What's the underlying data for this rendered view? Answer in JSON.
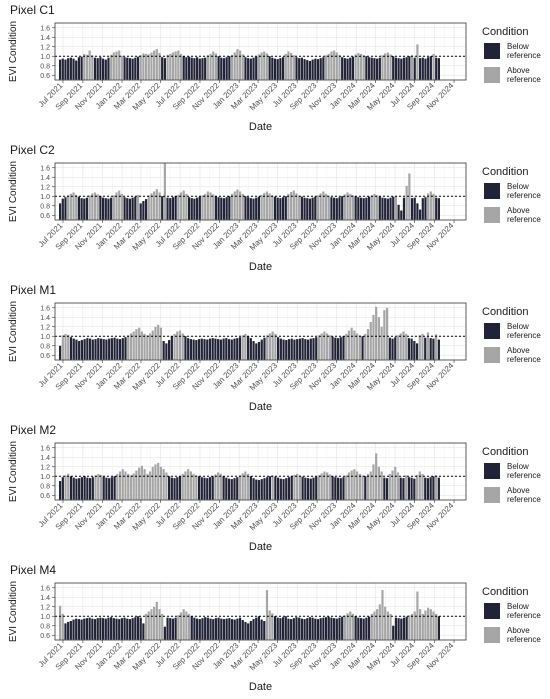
{
  "chart_data": [
    {
      "type": "bar",
      "title": "Pixel C1",
      "xlabel": "Date",
      "ylabel": "EVI Condition",
      "ylim": [
        0.5,
        1.7
      ],
      "yticks": [
        "0.6",
        "0.8",
        "1.0",
        "1.2",
        "1.4",
        "1.6"
      ],
      "reference_line": 1.0,
      "grid": true,
      "x_start": "2021-07-01",
      "x_ticks": [
        "Jul 2021",
        "Sep 2021",
        "Nov 2021",
        "Jan 2022",
        "Mar 2022",
        "May 2022",
        "Jul 2022",
        "Sep 2022",
        "Nov 2022",
        "Jan 2023",
        "Mar 2023",
        "May 2023",
        "Jul 2023",
        "Sep 2023",
        "Nov 2023",
        "Jan 2024",
        "Mar 2024",
        "May 2024",
        "Jul 2024",
        "Sep 2024",
        "Nov 2024"
      ],
      "series": [
        {
          "name": "Below reference",
          "color": "#232338"
        },
        {
          "name": "Above reference",
          "color": "#a6a6a6"
        }
      ],
      "legend": {
        "title": "Condition",
        "position": "right"
      },
      "values": [
        0.93,
        0.95,
        0.93,
        0.96,
        0.97,
        0.95,
        0.91,
        0.98,
        0.99,
        1.05,
        1.03,
        1.12,
        1.02,
        0.97,
        0.96,
        0.98,
        0.95,
        0.93,
        0.97,
        1.03,
        1.08,
        1.1,
        1.12,
        1.01,
        0.98,
        0.97,
        0.96,
        0.95,
        0.97,
        0.99,
        1.02,
        1.06,
        1.05,
        1.04,
        1.08,
        1.12,
        1.15,
        1.07,
        0.98,
        0.96,
        1.03,
        1.05,
        1.08,
        1.1,
        1.12,
        1.05,
        1.0,
        0.98,
        0.99,
        0.97,
        0.96,
        0.98,
        0.95,
        0.96,
        0.97,
        1.02,
        1.05,
        1.1,
        1.06,
        1.0,
        0.97,
        0.96,
        0.98,
        1.0,
        1.03,
        1.08,
        1.15,
        1.12,
        1.04,
        0.98,
        0.96,
        0.95,
        0.97,
        0.99,
        1.04,
        1.08,
        1.1,
        1.06,
        1.0,
        0.97,
        0.95,
        0.94,
        0.96,
        0.98,
        1.05,
        1.1,
        1.07,
        1.02,
        0.98,
        0.96,
        0.97,
        0.94,
        0.92,
        0.9,
        0.93,
        0.95,
        0.94,
        0.96,
        0.98,
        1.02,
        1.05,
        1.1,
        1.12,
        1.08,
        1.03,
        0.98,
        0.96,
        0.95,
        0.97,
        0.99,
        1.04,
        1.07,
        1.05,
        1.02,
        1.0,
        0.98,
        0.97,
        0.96,
        0.95,
        0.97,
        1.02,
        1.06,
        1.08,
        1.04,
        1.0,
        0.97,
        0.96,
        0.95,
        0.97,
        0.98,
        1.0,
        1.02,
        0.97,
        1.25,
        0.96,
        0.97,
        0.95,
        0.98,
        1.0,
        1.05,
        0.97,
        0.96
      ]
    },
    {
      "type": "bar",
      "title": "Pixel C2",
      "xlabel": "Date",
      "ylabel": "EVI Condition",
      "ylim": [
        0.5,
        1.7
      ],
      "yticks": [
        "0.6",
        "0.8",
        "1.0",
        "1.2",
        "1.4",
        "1.6"
      ],
      "reference_line": 1.0,
      "grid": true,
      "x_start": "2021-07-01",
      "x_ticks": [
        "Jul 2021",
        "Sep 2021",
        "Nov 2021",
        "Jan 2022",
        "Mar 2022",
        "May 2022",
        "Jul 2022",
        "Sep 2022",
        "Nov 2022",
        "Jan 2023",
        "Mar 2023",
        "May 2023",
        "Jul 2023",
        "Sep 2023",
        "Nov 2023",
        "Jan 2024",
        "Mar 2024",
        "May 2024",
        "Jul 2024",
        "Sep 2024",
        "Nov 2024"
      ],
      "series": [
        {
          "name": "Below reference",
          "color": "#232338"
        },
        {
          "name": "Above reference",
          "color": "#a6a6a6"
        }
      ],
      "legend": {
        "title": "Condition",
        "position": "right"
      },
      "values": [
        0.85,
        0.95,
        0.98,
        1.02,
        1.05,
        1.08,
        1.03,
        0.99,
        0.96,
        0.95,
        0.97,
        1.02,
        1.06,
        1.08,
        1.04,
        1.0,
        0.97,
        0.96,
        0.95,
        0.97,
        1.02,
        1.08,
        1.12,
        1.05,
        0.98,
        0.96,
        0.95,
        0.97,
        0.99,
        1.03,
        0.85,
        0.9,
        0.94,
        1.02,
        1.06,
        1.1,
        1.15,
        1.08,
        1.0,
        1.7,
        0.97,
        0.96,
        0.98,
        1.0,
        1.03,
        1.08,
        1.12,
        1.05,
        0.98,
        0.96,
        0.95,
        0.97,
        0.99,
        1.02,
        1.05,
        1.1,
        1.08,
        1.04,
        1.0,
        0.98,
        0.97,
        0.96,
        0.98,
        1.0,
        1.05,
        1.1,
        1.14,
        1.1,
        1.05,
        1.0,
        0.98,
        0.96,
        0.95,
        0.97,
        0.99,
        1.03,
        1.07,
        1.1,
        1.06,
        1.02,
        0.99,
        0.97,
        0.96,
        0.98,
        1.0,
        1.05,
        1.09,
        1.12,
        1.06,
        1.02,
        0.99,
        0.97,
        0.96,
        0.95,
        0.97,
        0.99,
        1.02,
        1.06,
        1.1,
        1.05,
        1.01,
        0.98,
        0.97,
        0.96,
        0.98,
        1.0,
        1.04,
        1.08,
        1.05,
        1.02,
        1.0,
        0.98,
        0.97,
        0.96,
        0.97,
        0.99,
        1.02,
        1.05,
        1.02,
        0.99,
        0.97,
        0.96,
        0.95,
        0.97,
        0.99,
        1.01,
        0.82,
        0.7,
        0.97,
        1.22,
        1.48,
        0.96,
        0.97,
        0.85,
        0.72,
        0.96,
        0.98,
        1.06,
        1.1,
        1.05,
        0.97,
        0.96
      ]
    },
    {
      "type": "bar",
      "title": "Pixel M1",
      "xlabel": "Date",
      "ylabel": "EVI Condition",
      "ylim": [
        0.5,
        1.7
      ],
      "yticks": [
        "0.6",
        "0.8",
        "1.0",
        "1.2",
        "1.4",
        "1.6"
      ],
      "reference_line": 1.0,
      "grid": true,
      "x_start": "2021-07-01",
      "x_ticks": [
        "Jul 2021",
        "Sep 2021",
        "Nov 2021",
        "Jan 2022",
        "Mar 2022",
        "May 2022",
        "Jul 2022",
        "Sep 2022",
        "Nov 2022",
        "Jan 2023",
        "Mar 2023",
        "May 2023",
        "Jul 2023",
        "Sep 2023",
        "Nov 2023",
        "Jan 2024",
        "Mar 2024",
        "May 2024",
        "Jul 2024",
        "Sep 2024",
        "Nov 2024"
      ],
      "series": [
        {
          "name": "Below reference",
          "color": "#232338"
        },
        {
          "name": "Above reference",
          "color": "#a6a6a6"
        }
      ],
      "legend": {
        "title": "Condition",
        "position": "right"
      },
      "values": [
        0.8,
        1.02,
        1.05,
        1.03,
        0.98,
        0.95,
        0.93,
        0.9,
        0.92,
        0.94,
        0.96,
        0.95,
        0.93,
        0.94,
        0.96,
        0.95,
        0.94,
        0.93,
        0.95,
        0.96,
        0.97,
        0.95,
        0.94,
        0.96,
        0.98,
        1.02,
        1.06,
        1.1,
        1.15,
        1.18,
        1.1,
        1.05,
        1.02,
        1.06,
        1.12,
        1.2,
        1.24,
        1.18,
        0.9,
        0.85,
        0.92,
        1.0,
        1.05,
        1.1,
        1.12,
        1.06,
        1.0,
        0.96,
        0.94,
        0.93,
        0.92,
        0.94,
        0.95,
        0.94,
        0.93,
        0.95,
        0.96,
        0.95,
        0.94,
        0.93,
        0.95,
        0.96,
        0.94,
        0.93,
        0.95,
        0.96,
        0.98,
        1.02,
        1.05,
        1.0,
        0.96,
        0.9,
        0.85,
        0.88,
        0.93,
        0.97,
        1.02,
        1.06,
        1.1,
        1.05,
        0.98,
        0.95,
        0.93,
        0.92,
        0.94,
        0.95,
        0.93,
        0.94,
        0.95,
        0.96,
        0.94,
        0.93,
        0.95,
        0.96,
        0.98,
        1.02,
        1.06,
        1.1,
        1.06,
        1.02,
        0.99,
        0.97,
        0.96,
        0.98,
        1.0,
        1.05,
        1.12,
        1.18,
        1.12,
        1.06,
        1.02,
        1.0,
        1.05,
        1.15,
        1.3,
        1.45,
        1.62,
        1.4,
        1.2,
        1.55,
        1.6,
        0.97,
        0.95,
        0.98,
        1.02,
        1.06,
        1.1,
        1.05,
        0.96,
        0.95,
        0.9,
        0.85,
        1.02,
        1.05,
        0.97,
        1.08,
        0.96,
        0.95,
        1.04,
        0.93
      ]
    },
    {
      "type": "bar",
      "title": "Pixel M2",
      "xlabel": "Date",
      "ylabel": "EVI Condition",
      "ylim": [
        0.5,
        1.7
      ],
      "yticks": [
        "0.6",
        "0.8",
        "1.0",
        "1.2",
        "1.4",
        "1.6"
      ],
      "reference_line": 1.0,
      "grid": true,
      "x_start": "2021-07-01",
      "x_ticks": [
        "Jul 2021",
        "Sep 2021",
        "Nov 2021",
        "Jan 2022",
        "Mar 2022",
        "May 2022",
        "Jul 2022",
        "Sep 2022",
        "Nov 2022",
        "Jan 2023",
        "Mar 2023",
        "May 2023",
        "Jul 2023",
        "Sep 2023",
        "Nov 2023",
        "Jan 2024",
        "Mar 2024",
        "May 2024",
        "Jul 2024",
        "Sep 2024",
        "Nov 2024"
      ],
      "series": [
        {
          "name": "Below reference",
          "color": "#232338"
        },
        {
          "name": "Above reference",
          "color": "#a6a6a6"
        }
      ],
      "legend": {
        "title": "Condition",
        "position": "right"
      },
      "values": [
        0.9,
        0.98,
        1.02,
        1.05,
        1.0,
        0.97,
        0.95,
        0.96,
        0.98,
        1.0,
        0.97,
        0.96,
        0.98,
        1.02,
        1.05,
        1.03,
        0.99,
        0.97,
        0.96,
        0.98,
        1.0,
        1.05,
        1.1,
        1.15,
        1.1,
        1.05,
        1.02,
        1.06,
        1.12,
        1.18,
        1.22,
        1.15,
        1.05,
        1.1,
        1.2,
        1.25,
        1.28,
        1.2,
        1.15,
        1.08,
        1.0,
        0.97,
        0.96,
        0.98,
        1.0,
        1.05,
        1.1,
        1.15,
        1.1,
        1.05,
        1.02,
        1.0,
        0.98,
        0.97,
        0.96,
        0.98,
        1.0,
        1.04,
        1.08,
        1.05,
        1.0,
        0.97,
        0.95,
        0.94,
        0.96,
        0.98,
        1.02,
        1.06,
        1.1,
        1.05,
        1.0,
        0.96,
        0.93,
        0.92,
        0.94,
        0.96,
        0.98,
        1.0,
        1.02,
        0.99,
        0.97,
        0.95,
        0.94,
        0.96,
        0.98,
        1.0,
        1.03,
        1.05,
        1.02,
        0.99,
        0.97,
        0.96,
        0.95,
        0.97,
        0.99,
        1.02,
        1.06,
        1.1,
        1.08,
        1.04,
        1.0,
        0.98,
        0.97,
        0.96,
        0.98,
        1.02,
        1.08,
        1.12,
        1.15,
        1.1,
        1.05,
        1.02,
        1.0,
        1.05,
        1.1,
        1.25,
        1.48,
        1.2,
        1.1,
        0.97,
        0.96,
        1.05,
        1.12,
        1.2,
        1.08,
        0.97,
        0.96,
        1.02,
        0.98,
        0.97,
        0.95,
        1.03,
        1.1,
        1.05,
        0.97,
        0.96,
        0.98,
        1.0,
        1.02,
        0.97
      ]
    },
    {
      "type": "bar",
      "title": "Pixel M4",
      "xlabel": "Date",
      "ylabel": "EVI Condition",
      "ylim": [
        0.5,
        1.7
      ],
      "yticks": [
        "0.6",
        "0.8",
        "1.0",
        "1.2",
        "1.4",
        "1.6"
      ],
      "reference_line": 1.0,
      "grid": true,
      "x_start": "2021-07-01",
      "x_ticks": [
        "Jul 2021",
        "Sep 2021",
        "Nov 2021",
        "Jan 2022",
        "Mar 2022",
        "May 2022",
        "Jul 2022",
        "Sep 2022",
        "Nov 2022",
        "Jan 2023",
        "Mar 2023",
        "May 2023",
        "Jul 2023",
        "Sep 2023",
        "Nov 2023",
        "Jan 2024",
        "Mar 2024",
        "May 2024",
        "Jul 2024",
        "Sep 2024",
        "Nov 2024"
      ],
      "series": [
        {
          "name": "Below reference",
          "color": "#232338"
        },
        {
          "name": "Above reference",
          "color": "#a6a6a6"
        }
      ],
      "legend": {
        "title": "Condition",
        "position": "right"
      },
      "values": [
        1.22,
        1.05,
        0.85,
        0.88,
        0.9,
        0.93,
        0.95,
        0.94,
        0.93,
        0.95,
        0.96,
        0.97,
        0.95,
        0.94,
        0.96,
        0.97,
        0.96,
        0.95,
        0.97,
        0.98,
        0.96,
        0.95,
        0.94,
        0.96,
        0.97,
        0.95,
        0.94,
        0.96,
        0.98,
        1.0,
        0.97,
        0.85,
        1.05,
        1.1,
        1.15,
        1.2,
        1.3,
        1.15,
        1.05,
        0.78,
        0.97,
        0.96,
        0.95,
        0.97,
        1.02,
        1.08,
        1.15,
        1.1,
        1.05,
        1.0,
        0.97,
        0.95,
        0.94,
        0.96,
        0.98,
        0.97,
        0.95,
        0.94,
        0.96,
        0.97,
        0.95,
        0.94,
        0.95,
        0.96,
        0.94,
        0.93,
        0.95,
        0.97,
        0.92,
        0.88,
        0.85,
        0.9,
        0.94,
        0.97,
        1.0,
        0.93,
        0.9,
        1.55,
        1.12,
        1.06,
        1.0,
        0.97,
        0.96,
        0.98,
        1.0,
        0.95,
        0.94,
        0.96,
        0.98,
        0.97,
        0.95,
        0.94,
        0.96,
        0.98,
        0.97,
        0.95,
        0.94,
        0.96,
        0.97,
        0.98,
        0.99,
        0.97,
        0.96,
        0.95,
        0.97,
        0.99,
        1.02,
        1.06,
        1.1,
        1.05,
        1.0,
        0.97,
        0.96,
        0.95,
        0.97,
        0.99,
        1.05,
        1.1,
        1.15,
        1.25,
        1.55,
        1.2,
        1.1,
        1.05,
        0.8,
        0.97,
        0.96,
        0.95,
        0.97,
        0.99,
        1.02,
        1.05,
        1.1,
        1.52,
        1.15,
        1.05,
        1.12,
        1.18,
        1.15,
        1.1,
        1.05,
        1.0
      ]
    }
  ]
}
